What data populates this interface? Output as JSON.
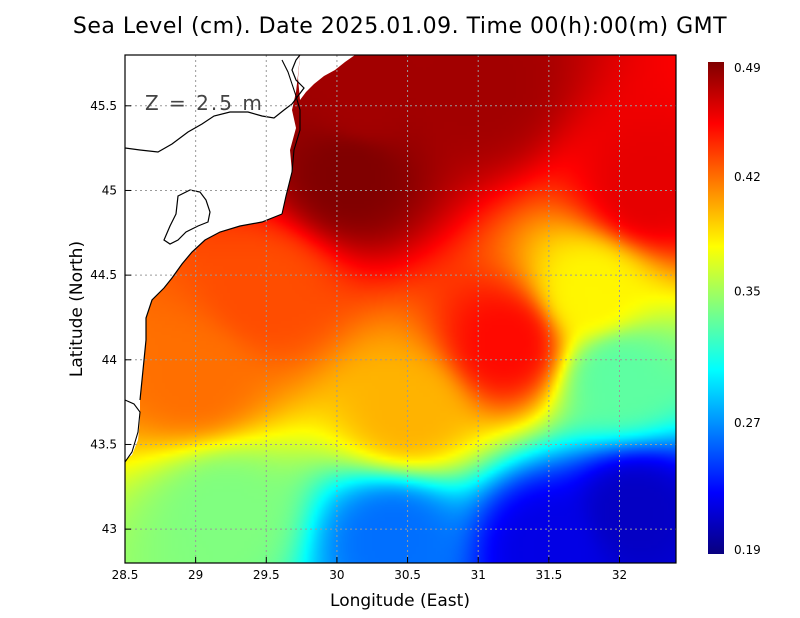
{
  "title": "Sea Level (cm). Date 2025.01.09. Time 00(h):00(m) GMT",
  "depth_label": "Z = 2.5 m",
  "x_axis": {
    "label": "Longitude (East)",
    "range": [
      28.5,
      32.4
    ],
    "ticks": [
      "28.5",
      "29",
      "29.5",
      "30",
      "30.5",
      "31",
      "31.5",
      "32"
    ],
    "tick_values": [
      28.5,
      29,
      29.5,
      30,
      30.5,
      31,
      31.5,
      32
    ]
  },
  "y_axis": {
    "label": "Latitude (North)",
    "range": [
      42.8,
      45.8
    ],
    "ticks": [
      "43",
      "43.5",
      "44",
      "44.5",
      "45",
      "45.5"
    ],
    "tick_values": [
      43,
      43.5,
      44,
      44.5,
      45,
      45.5
    ]
  },
  "colorbar": {
    "range": [
      0.19,
      0.49
    ],
    "labels": [
      "0.49",
      "0.42",
      "0.35",
      "0.27",
      "0.19"
    ],
    "label_values": [
      0.49,
      0.42,
      0.35,
      0.27,
      0.19
    ],
    "stops": [
      "#08007f",
      "#0000ff",
      "#0080ff",
      "#00ffff",
      "#80ff80",
      "#ffff00",
      "#ff8000",
      "#ff0000",
      "#800000"
    ]
  },
  "chart_data": {
    "type": "heatmap",
    "variable": "Sea Level (cm)",
    "lon_range": [
      28.5,
      32.4
    ],
    "lat_range": [
      42.8,
      45.8
    ],
    "value_range": [
      0.19,
      0.49
    ],
    "field_blobs": [
      {
        "lon": 29.0,
        "lat": 43.9,
        "value": 0.42
      },
      {
        "lon": 29.5,
        "lat": 44.4,
        "value": 0.43
      },
      {
        "lon": 30.2,
        "lat": 45.5,
        "value": 0.48
      },
      {
        "lon": 30.1,
        "lat": 45.1,
        "value": 0.49
      },
      {
        "lon": 31.0,
        "lat": 45.6,
        "value": 0.48
      },
      {
        "lon": 31.2,
        "lat": 44.1,
        "value": 0.45
      },
      {
        "lon": 32.2,
        "lat": 45.0,
        "value": 0.46
      },
      {
        "lon": 30.5,
        "lat": 43.7,
        "value": 0.4
      },
      {
        "lon": 29.2,
        "lat": 43.1,
        "value": 0.34
      },
      {
        "lon": 30.4,
        "lat": 42.95,
        "value": 0.26
      },
      {
        "lon": 31.5,
        "lat": 42.9,
        "value": 0.22
      },
      {
        "lon": 32.1,
        "lat": 43.1,
        "value": 0.21
      },
      {
        "lon": 32.0,
        "lat": 43.9,
        "value": 0.33
      },
      {
        "lon": 31.8,
        "lat": 44.4,
        "value": 0.38
      }
    ],
    "grid": true
  }
}
